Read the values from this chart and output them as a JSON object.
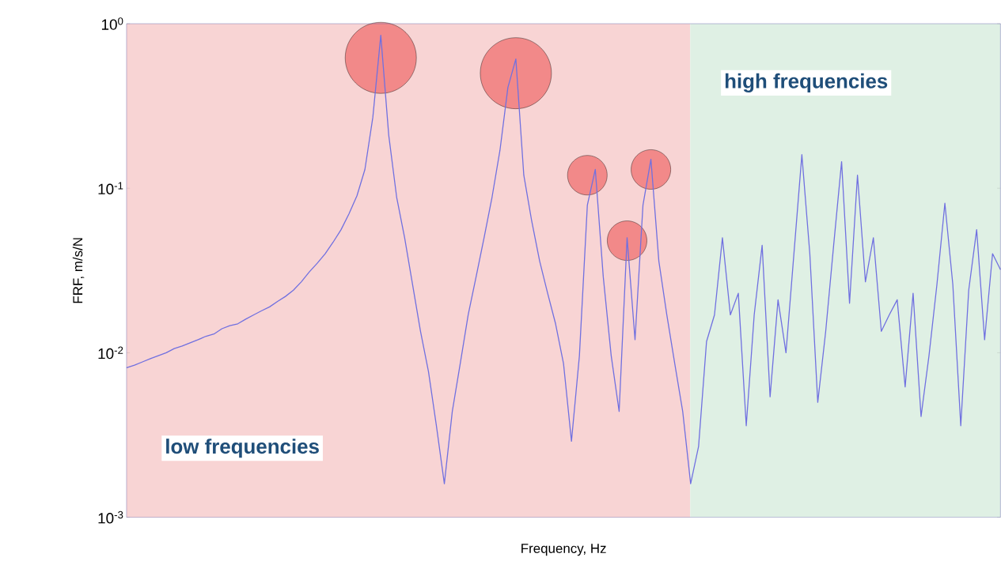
{
  "chart_data": {
    "type": "line",
    "xlabel": "Frequency, Hz",
    "ylabel": "FRF, m/s/N",
    "categories": [
      null,
      null,
      null,
      null,
      null,
      null,
      null,
      null,
      null,
      null,
      null,
      null,
      null,
      null,
      null,
      null,
      null,
      null,
      null,
      null,
      null,
      null,
      null,
      null,
      null,
      null,
      null,
      null,
      null,
      null,
      null,
      null,
      null,
      null,
      null,
      null,
      null,
      null,
      null,
      null,
      null,
      null,
      null,
      null,
      null,
      null,
      null,
      null,
      null,
      null,
      null,
      null,
      null,
      null,
      null,
      null,
      null,
      null,
      null,
      null,
      null,
      null,
      null,
      null,
      null,
      null,
      null,
      null,
      null,
      null,
      null,
      null,
      null,
      null,
      null,
      null,
      null,
      null,
      null,
      null,
      null,
      null,
      null,
      null,
      null,
      null,
      null,
      null,
      null,
      null,
      null,
      null,
      null,
      null,
      null,
      null,
      null,
      null,
      null,
      null,
      null,
      null,
      null,
      null,
      null,
      null,
      null,
      null,
      null,
      null,
      null
    ],
    "log": "y",
    "ylim": [
      0.001,
      1
    ],
    "yticks": [
      {
        "value": 0.001,
        "label": "10$^{-3}$"
      },
      {
        "value": 0.01,
        "label": "10$^{-2}$"
      },
      {
        "value": 0.1,
        "label": "10$^{-1}$"
      },
      {
        "value": 1,
        "label": "10$^{0}$"
      }
    ],
    "tick_labels": "y",
    "series": [
      {
        "color": "#7070e0",
        "values": [
          0.0081,
          0.0084,
          0.0088,
          0.0092,
          0.0096,
          0.01,
          0.0106,
          0.011,
          0.0115,
          0.012,
          0.0126,
          0.013,
          0.014,
          0.0146,
          0.015,
          0.016,
          0.017,
          0.018,
          0.019,
          0.0205,
          0.022,
          0.024,
          0.027,
          0.031,
          0.035,
          0.04,
          0.047,
          0.056,
          0.07,
          0.09,
          0.13,
          0.27,
          0.85,
          0.21,
          0.088,
          0.05,
          0.026,
          0.0135,
          0.0077,
          0.0036,
          0.0016,
          0.0044,
          0.0086,
          0.017,
          0.029,
          0.05,
          0.088,
          0.17,
          0.41,
          0.61,
          0.12,
          0.063,
          0.036,
          0.023,
          0.015,
          0.0086,
          0.0029,
          0.0096,
          0.079,
          0.13,
          0.029,
          0.0096,
          0.0044,
          0.05,
          0.012,
          0.079,
          0.15,
          0.036,
          0.017,
          0.0086,
          0.0044,
          0.0016,
          0.0027,
          0.0117,
          0.017,
          0.05,
          0.017,
          0.023,
          0.0036,
          0.017,
          0.045,
          0.0054,
          0.021,
          0.01,
          0.04,
          0.16,
          0.04,
          0.005,
          0.0135,
          0.045,
          0.145,
          0.02,
          0.12,
          0.027,
          0.05,
          0.0135,
          0.017,
          0.021,
          0.0062,
          0.023,
          0.0041,
          0.0096,
          0.026,
          0.081,
          0.026,
          0.0036,
          0.024,
          0.056,
          0.012,
          0.04,
          0.032
        ]
      },
      {
        "type": "bubble",
        "color": "#f07070",
        "values": [
          null,
          null,
          null,
          null,
          null,
          null,
          null,
          null,
          null,
          null,
          null,
          null,
          null,
          null,
          null,
          null,
          null,
          null,
          null,
          null,
          null,
          null,
          null,
          null,
          null,
          null,
          null,
          null,
          null,
          null,
          null,
          null,
          0.62,
          null,
          null,
          null,
          null,
          null,
          null,
          null,
          null,
          null,
          null,
          null,
          null,
          null,
          null,
          null,
          null,
          0.5,
          null,
          null,
          null,
          null,
          null,
          null,
          null,
          null,
          0.12,
          null,
          null,
          null,
          null,
          0.048,
          null,
          null,
          0.13,
          null,
          null,
          null,
          null,
          null,
          null,
          null,
          null,
          null,
          null,
          null,
          null,
          null,
          null,
          null,
          null,
          null,
          null,
          null,
          null,
          null,
          null,
          null,
          null,
          null,
          null,
          null,
          null,
          null,
          null,
          null,
          null,
          null,
          null,
          null,
          null,
          null,
          null,
          null,
          null,
          null,
          null,
          null,
          null
        ],
        "sizes": [
          null,
          null,
          null,
          null,
          null,
          null,
          null,
          null,
          null,
          null,
          null,
          null,
          null,
          null,
          null,
          null,
          null,
          null,
          null,
          null,
          null,
          null,
          null,
          null,
          null,
          null,
          null,
          null,
          null,
          null,
          null,
          null,
          1,
          null,
          null,
          null,
          null,
          null,
          null,
          null,
          null,
          null,
          null,
          null,
          null,
          null,
          null,
          null,
          null,
          1,
          null,
          null,
          null,
          null,
          null,
          null,
          null,
          null,
          0.31,
          null,
          null,
          null,
          null,
          0.31,
          null,
          null,
          0.31,
          null,
          null,
          null,
          null,
          null,
          null,
          null,
          null,
          null,
          null,
          null,
          null,
          null,
          null,
          null,
          null,
          null,
          null,
          null,
          null,
          null,
          null,
          null,
          null,
          null,
          null,
          null,
          null,
          null,
          null,
          null,
          null,
          null,
          null,
          null,
          null,
          null,
          null,
          null,
          null,
          null,
          null,
          null,
          null
        ]
      }
    ],
    "annotations": [
      "low frequencies",
      "high frequencies"
    ]
  }
}
